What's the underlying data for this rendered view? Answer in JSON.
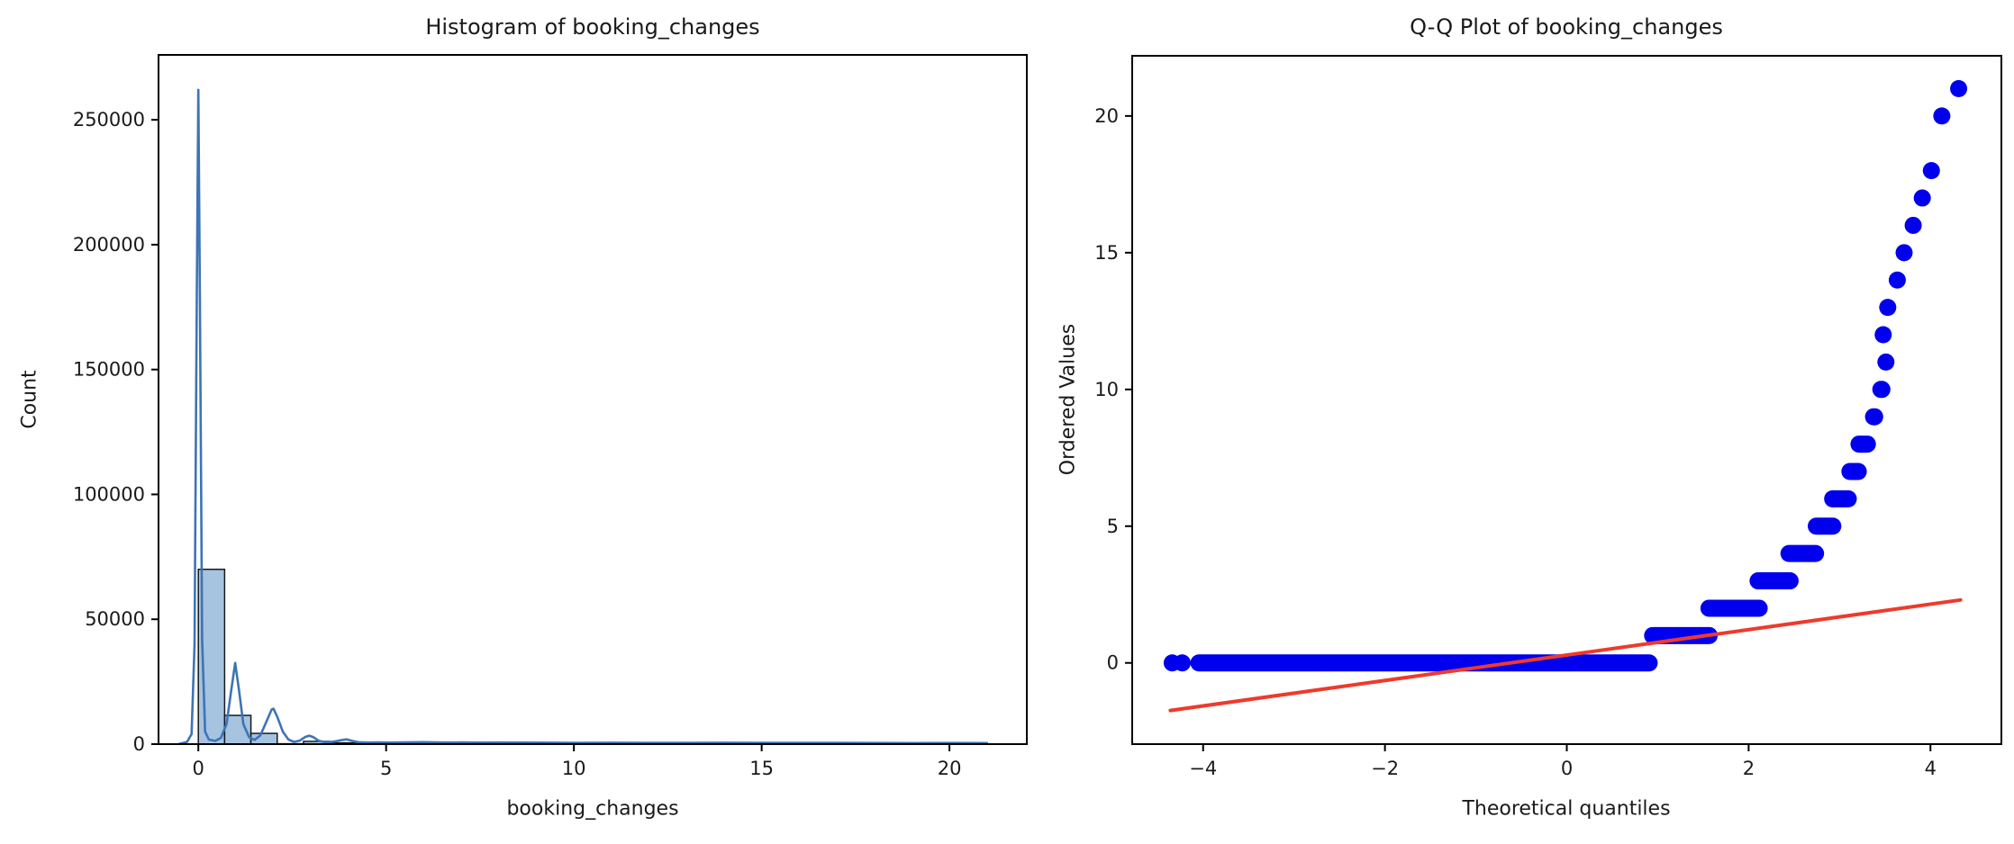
{
  "figure": {
    "background": "#ffffff",
    "text_color": "#1a1a1a",
    "spine_color": "#000000"
  },
  "chart_data": [
    {
      "type": "bar",
      "subtype": "histogram-with-kde",
      "title": "Histogram of booking_changes",
      "xlabel": "booking_changes",
      "ylabel": "Count",
      "xlim": [
        -1.06,
        22.06
      ],
      "ylim": [
        0,
        276000
      ],
      "xticks": {
        "values": [
          0,
          5,
          10,
          15,
          20
        ],
        "labels": [
          "0",
          "5",
          "10",
          "15",
          "20"
        ]
      },
      "yticks": {
        "values": [
          0,
          50000,
          100000,
          150000,
          200000,
          250000
        ],
        "labels": [
          "0",
          "50000",
          "100000",
          "150000",
          "200000",
          "250000"
        ]
      },
      "grid": false,
      "bins": {
        "start": 0,
        "width": 0.7,
        "counts": [
          70000,
          11500,
          4300,
          150,
          1100,
          500,
          150,
          120,
          80,
          50,
          35,
          25,
          18,
          14,
          10,
          8,
          6,
          5,
          4,
          3,
          3,
          2,
          2,
          2,
          2,
          1,
          1,
          1,
          1,
          2
        ]
      },
      "kde_peak_count": 262000,
      "kde": [
        [
          -0.5,
          150
        ],
        [
          -0.3,
          900
        ],
        [
          -0.18,
          4000
        ],
        [
          -0.1,
          40000
        ],
        [
          -0.04,
          180000
        ],
        [
          0,
          262000
        ],
        [
          0.04,
          180000
        ],
        [
          0.1,
          42000
        ],
        [
          0.18,
          5000
        ],
        [
          0.28,
          1800
        ],
        [
          0.45,
          1300
        ],
        [
          0.6,
          2500
        ],
        [
          0.75,
          8000
        ],
        [
          0.88,
          22000
        ],
        [
          0.98,
          32500
        ],
        [
          1.08,
          22000
        ],
        [
          1.2,
          8000
        ],
        [
          1.35,
          2800
        ],
        [
          1.5,
          1700
        ],
        [
          1.65,
          3500
        ],
        [
          1.8,
          8500
        ],
        [
          1.95,
          13800
        ],
        [
          2.0,
          14200
        ],
        [
          2.1,
          11000
        ],
        [
          2.25,
          5000
        ],
        [
          2.4,
          1800
        ],
        [
          2.55,
          900
        ],
        [
          2.7,
          1400
        ],
        [
          2.85,
          2900
        ],
        [
          2.95,
          3400
        ],
        [
          3.05,
          2900
        ],
        [
          3.2,
          1400
        ],
        [
          3.35,
          800
        ],
        [
          3.5,
          800
        ],
        [
          3.65,
          1100
        ],
        [
          3.8,
          1600
        ],
        [
          3.95,
          1900
        ],
        [
          4.1,
          1300
        ],
        [
          4.25,
          800
        ],
        [
          4.5,
          600
        ],
        [
          4.8,
          700
        ],
        [
          5.1,
          600
        ],
        [
          5.5,
          700
        ],
        [
          6,
          800
        ],
        [
          6.5,
          650
        ],
        [
          7,
          700
        ],
        [
          7.5,
          600
        ],
        [
          8,
          650
        ],
        [
          9,
          600
        ],
        [
          10,
          550
        ],
        [
          11,
          560
        ],
        [
          12,
          520
        ],
        [
          13,
          530
        ],
        [
          14,
          560
        ],
        [
          15,
          520
        ],
        [
          16,
          510
        ],
        [
          17,
          520
        ],
        [
          18,
          470
        ],
        [
          19,
          430
        ],
        [
          20,
          470
        ],
        [
          21,
          420
        ]
      ],
      "colors": {
        "bar_fill": "#a6c3e0",
        "bar_edge": "#15191e",
        "kde_line": "#3e74b4"
      }
    },
    {
      "type": "scatter",
      "subtype": "qq-plot",
      "title": "Q-Q Plot of booking_changes",
      "xlabel": "Theoretical quantiles",
      "ylabel": "Ordered Values",
      "xlim": [
        -4.78,
        4.78
      ],
      "ylim": [
        -2.97,
        22.2
      ],
      "xticks": {
        "values": [
          -4,
          -2,
          0,
          2,
          4
        ],
        "labels": [
          "−4",
          "−2",
          "0",
          "2",
          "4"
        ]
      },
      "yticks": {
        "values": [
          0,
          5,
          10,
          15,
          20
        ],
        "labels": [
          "0",
          "5",
          "10",
          "15",
          "20"
        ]
      },
      "grid": false,
      "bands": [
        {
          "value": 0,
          "segments": [
            [
              -4.37,
              -4.31
            ],
            [
              -4.26,
              -4.2
            ],
            [
              -4.14,
              1.0
            ]
          ]
        },
        {
          "value": 1,
          "segments": [
            [
              0.85,
              1.66
            ]
          ]
        },
        {
          "value": 2,
          "segments": [
            [
              1.47,
              2.21
            ]
          ]
        },
        {
          "value": 3,
          "segments": [
            [
              2.01,
              2.55
            ]
          ]
        },
        {
          "value": 4,
          "segments": [
            [
              2.35,
              2.83
            ]
          ]
        },
        {
          "value": 5,
          "segments": [
            [
              2.65,
              3.02
            ]
          ]
        },
        {
          "value": 6,
          "segments": [
            [
              2.83,
              3.19
            ]
          ]
        },
        {
          "value": 7,
          "segments": [
            [
              3.02,
              3.3
            ]
          ]
        },
        {
          "value": 8,
          "segments": [
            [
              3.12,
              3.4
            ]
          ]
        },
        {
          "value": 9,
          "segments": [
            [
              3.28,
              3.48
            ]
          ]
        },
        {
          "value": 10,
          "segments": [
            [
              3.36,
              3.56
            ]
          ]
        },
        {
          "value": 11,
          "segments": [
            [
              3.42,
              3.6
            ]
          ]
        },
        {
          "value": 12,
          "segments": [
            [
              3.44,
              3.52
            ]
          ]
        },
        {
          "value": 13,
          "segments": [
            [
              3.49,
              3.57
            ]
          ]
        },
        {
          "value": 14,
          "segments": [
            [
              3.55,
              3.72
            ]
          ]
        },
        {
          "value": 15,
          "segments": [
            [
              3.67,
              3.75
            ]
          ]
        },
        {
          "value": 16,
          "segments": [
            [
              3.77,
              3.85
            ]
          ]
        },
        {
          "value": 17,
          "segments": [
            [
              3.87,
              3.95
            ]
          ]
        },
        {
          "value": 18,
          "segments": [
            [
              3.97,
              4.05
            ]
          ]
        },
        {
          "value": 20,
          "segments": [
            [
              4.09,
              4.16
            ]
          ]
        },
        {
          "value": 21,
          "segments": [
            [
              4.27,
              4.35
            ]
          ]
        }
      ],
      "fit_line": {
        "x1": -4.36,
        "y1": -1.74,
        "x2": 4.33,
        "y2": 2.3
      },
      "colors": {
        "marker": "#0000ee",
        "line": "#ee3a2c"
      }
    }
  ]
}
